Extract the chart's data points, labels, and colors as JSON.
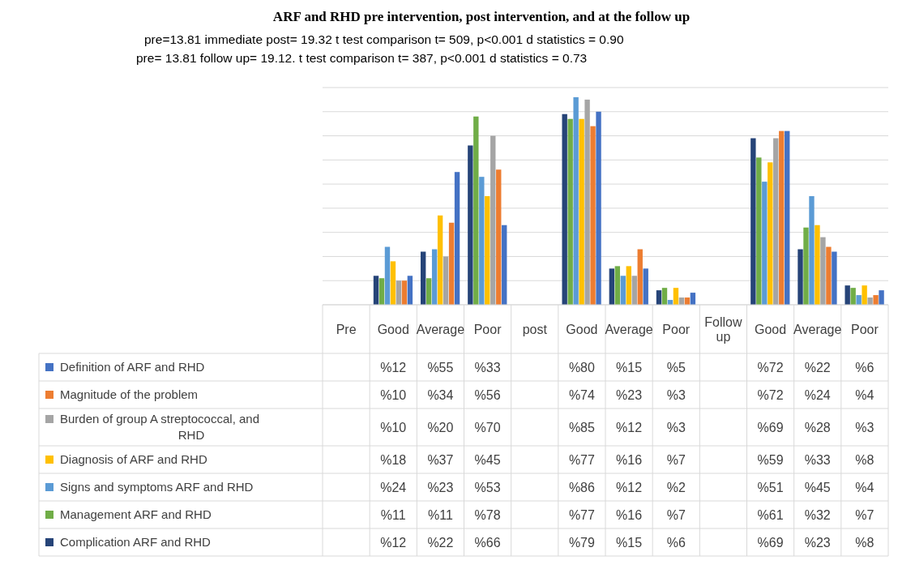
{
  "chart_data": {
    "type": "bar",
    "title": "ARF and RHD pre intervention, post intervention, and at the follow up",
    "annotations": [
      "pre=13.81  immediate post= 19.32  t test comparison t= 509, p<0.001  d statistics = 0.90",
      "pre= 13.81  follow up= 19.12.        t test comparison t= 387, p<0.001  d statistics = 0.73"
    ],
    "categories": [
      "Pre",
      "Good",
      "Average",
      "Poor",
      "post",
      "Good",
      "Average",
      "Poor",
      "Follow up",
      "Good",
      "Average",
      "Poor"
    ],
    "ylim": [
      0,
      90
    ],
    "yticks": [
      {
        "value": 0,
        "label": null
      },
      {
        "value": 10,
        "label": null
      },
      {
        "value": 20,
        "label": null
      },
      {
        "value": 30,
        "label": null
      },
      {
        "value": 40,
        "label": null
      },
      {
        "value": 50,
        "label": null
      },
      {
        "value": 60,
        "label": null
      },
      {
        "value": 70,
        "label": null
      },
      {
        "value": 80,
        "label": null
      },
      {
        "value": 90,
        "label": null
      }
    ],
    "grid": "y",
    "legend": "left",
    "tick_labels": "x",
    "series": [
      {
        "name": "Definition of ARF and RHD",
        "color": "#4472c4",
        "values": [
          null,
          12,
          55,
          33,
          null,
          80,
          15,
          5,
          null,
          72,
          22,
          6
        ],
        "value_labels": [
          null,
          "%12",
          "%55",
          "%33",
          null,
          "%80",
          "%15",
          "%5",
          null,
          "%72",
          "%22",
          "%6"
        ]
      },
      {
        "name": "Magnitude of the problem",
        "color": "#ed7d31",
        "values": [
          null,
          10,
          34,
          56,
          null,
          74,
          23,
          3,
          null,
          72,
          24,
          4
        ],
        "value_labels": [
          null,
          "%10",
          "%34",
          "%56",
          null,
          "%74",
          "%23",
          "%3",
          null,
          "%72",
          "%24",
          "%4"
        ]
      },
      {
        "name": "Burden of group A streptococcal, and RHD",
        "color": "#a5a5a5",
        "values": [
          null,
          10,
          20,
          70,
          null,
          85,
          12,
          3,
          null,
          69,
          28,
          3
        ],
        "value_labels": [
          null,
          "%10",
          "%20",
          "%70",
          null,
          "%85",
          "%12",
          "%3",
          null,
          "%69",
          "%28",
          "%3"
        ]
      },
      {
        "name": "Diagnosis of ARF and RHD",
        "color": "#ffc000",
        "values": [
          null,
          18,
          37,
          45,
          null,
          77,
          16,
          7,
          null,
          59,
          33,
          8
        ],
        "value_labels": [
          null,
          "%18",
          "%37",
          "%45",
          null,
          "%77",
          "%16",
          "%7",
          null,
          "%59",
          "%33",
          "%8"
        ]
      },
      {
        "name": "Signs and symptoms ARF and RHD",
        "color": "#5b9bd5",
        "values": [
          null,
          24,
          23,
          53,
          null,
          86,
          12,
          2,
          null,
          51,
          45,
          4
        ],
        "value_labels": [
          null,
          "%24",
          "%23",
          "%53",
          null,
          "%86",
          "%12",
          "%2",
          null,
          "%51",
          "%45",
          "%4"
        ]
      },
      {
        "name": "Management ARF and RHD",
        "color": "#70ad47",
        "values": [
          null,
          11,
          11,
          78,
          null,
          77,
          16,
          7,
          null,
          61,
          32,
          7
        ],
        "value_labels": [
          null,
          "%11",
          "%11",
          "%78",
          null,
          "%77",
          "%16",
          "%7",
          null,
          "%61",
          "%32",
          "%7"
        ]
      },
      {
        "name": "Complication ARF and RHD",
        "color": "#264478",
        "values": [
          null,
          12,
          22,
          66,
          null,
          79,
          15,
          6,
          null,
          69,
          23,
          8
        ],
        "value_labels": [
          null,
          "%12",
          "%22",
          "%66",
          null,
          "%79",
          "%15",
          "%6",
          null,
          "%69",
          "%23",
          "%8"
        ]
      }
    ]
  }
}
